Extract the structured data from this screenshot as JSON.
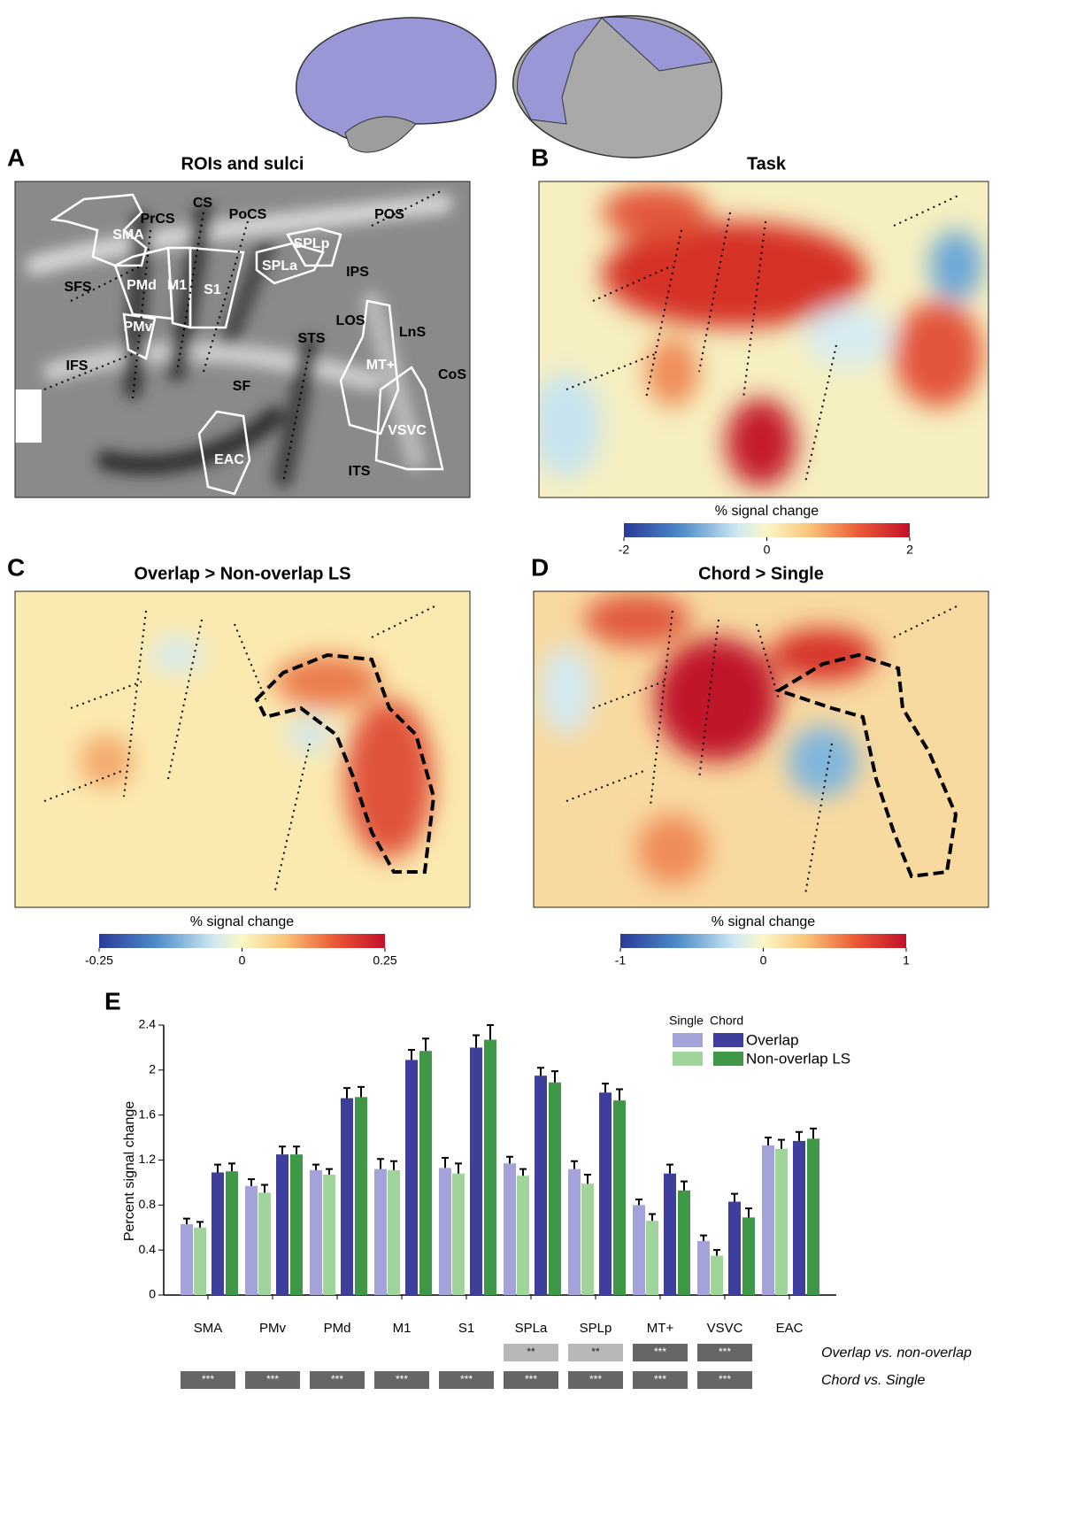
{
  "panels": {
    "A": {
      "letter": "A",
      "title": "ROIs and sulci",
      "labels": [
        "SMA",
        "PrCS",
        "CS",
        "PoCS",
        "POS",
        "SPLp",
        "SPLa",
        "IPS",
        "SFS",
        "PMd",
        "M1",
        "S1",
        "PMv",
        "LOS",
        "LnS",
        "STS",
        "MT+",
        "IFS",
        "CoS",
        "SF",
        "VSVC",
        "EAC",
        "ITS"
      ]
    },
    "B": {
      "letter": "B",
      "title": "Task",
      "colorbar": {
        "label": "% signal change",
        "lim": [
          -2,
          2
        ],
        "ticks": [
          -2,
          0,
          2
        ]
      }
    },
    "C": {
      "letter": "C",
      "title": "Overlap > Non-overlap LS",
      "colorbar": {
        "label": "% signal change",
        "lim": [
          -0.25,
          0.25
        ],
        "ticks": [
          -0.25,
          0,
          0.25
        ]
      }
    },
    "D": {
      "letter": "D",
      "title": "Chord > Single",
      "colorbar": {
        "label": "% signal change",
        "lim": [
          -1,
          1
        ],
        "ticks": [
          -1,
          0,
          1
        ]
      }
    }
  },
  "chart_data": {
    "type": "bar",
    "letter": "E",
    "y_label": "Percent signal change",
    "categories": [
      "SMA",
      "PMv",
      "PMd",
      "M1",
      "S1",
      "SPLa",
      "SPLp",
      "MT+",
      "VSVC",
      "EAC"
    ],
    "conditions": [
      "Single",
      "Chord"
    ],
    "series": [
      {
        "name": "Overlap",
        "colors": [
          "#a3a2d9",
          "#3e3f9c"
        ],
        "single": [
          0.63,
          0.97,
          1.11,
          1.12,
          1.13,
          1.17,
          1.12,
          0.8,
          0.48,
          1.33
        ],
        "single_err": [
          0.05,
          0.06,
          0.05,
          0.09,
          0.09,
          0.06,
          0.07,
          0.05,
          0.05,
          0.07
        ],
        "chord": [
          1.09,
          1.25,
          1.75,
          2.09,
          2.2,
          1.95,
          1.8,
          1.08,
          0.83,
          1.37
        ],
        "chord_err": [
          0.07,
          0.07,
          0.09,
          0.09,
          0.11,
          0.07,
          0.08,
          0.08,
          0.07,
          0.08
        ]
      },
      {
        "name": "Non-overlap LS",
        "colors": [
          "#9fd49a",
          "#3f9847"
        ],
        "single": [
          0.6,
          0.91,
          1.07,
          1.11,
          1.08,
          1.06,
          0.99,
          0.66,
          0.35,
          1.3
        ],
        "single_err": [
          0.05,
          0.07,
          0.05,
          0.08,
          0.09,
          0.06,
          0.08,
          0.06,
          0.05,
          0.08
        ],
        "chord": [
          1.1,
          1.25,
          1.76,
          2.17,
          2.27,
          1.89,
          1.73,
          0.93,
          0.69,
          1.39
        ],
        "chord_err": [
          0.07,
          0.07,
          0.09,
          0.11,
          0.13,
          0.1,
          0.1,
          0.08,
          0.08,
          0.09
        ]
      }
    ],
    "ylim": [
      0,
      2.4
    ],
    "yticks": [
      0,
      0.4,
      0.8,
      1.2,
      1.6,
      2,
      2.4
    ],
    "significance": [
      {
        "name": "Overlap vs. non-overlap",
        "marks": [
          null,
          null,
          null,
          null,
          null,
          "**",
          "**",
          "***",
          "***",
          null
        ]
      },
      {
        "name": "Chord vs. Single",
        "marks": [
          "***",
          "***",
          "***",
          "***",
          "***",
          "***",
          "***",
          "***",
          "***",
          null
        ]
      }
    ]
  }
}
